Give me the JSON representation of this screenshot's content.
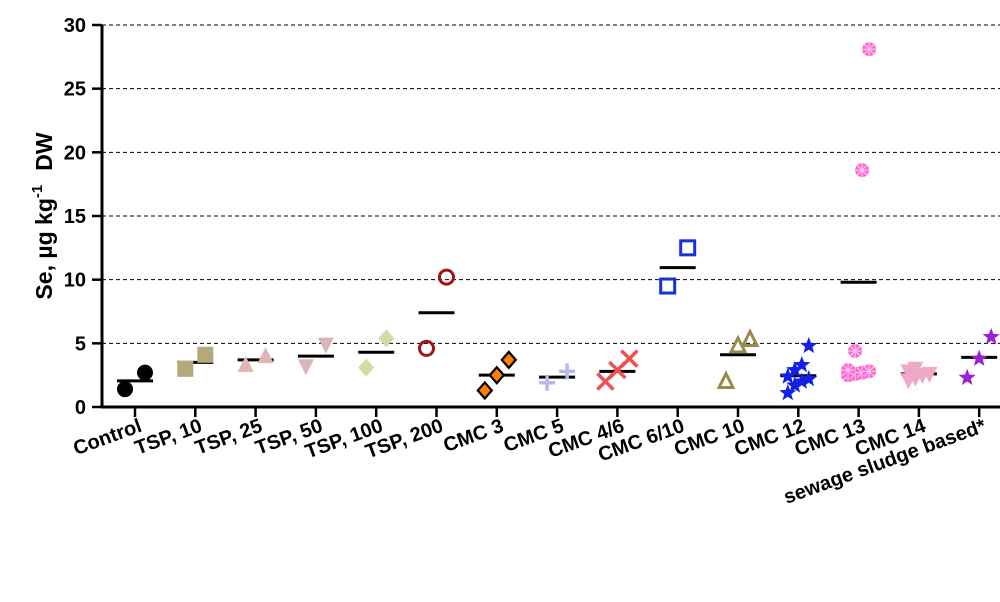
{
  "chart_data": {
    "type": "scatter",
    "title": "",
    "xlabel": "",
    "ylabel": {
      "prefix": "Se, µg kg",
      "superscript": "-1",
      "suffix": "DW"
    },
    "ylim": [
      0,
      30
    ],
    "yticks": [
      "0",
      "5",
      "10",
      "15",
      "20",
      "25",
      "30"
    ],
    "grid": "horizontal dashed lines at y = 5, 10, 15, 20, 25, 30",
    "categories": [
      "Control",
      "TSP, 10",
      "TSP, 25",
      "TSP, 50",
      "TSP, 100",
      "TSP, 200",
      "CMC 3",
      "CMC 5",
      "CMC 4/6",
      "CMC 6/10",
      "CMC 10",
      "CMC 12",
      "CMC 13",
      "CMC 14",
      "sewage sludge based*"
    ],
    "series": [
      {
        "category": "Control",
        "marker": "circle-filled",
        "color": "#000000",
        "points": [
          1.4,
          2.7
        ],
        "mean": 2.05
      },
      {
        "category": "TSP, 10",
        "marker": "square-filled",
        "color": "#b5a978",
        "points": [
          3.0,
          4.1
        ],
        "mean": 3.5
      },
      {
        "category": "TSP, 25",
        "marker": "triangle-up-filled",
        "color": "#e2b4b4",
        "points": [
          3.3,
          4.0
        ],
        "mean": 3.7
      },
      {
        "category": "TSP, 50",
        "marker": "triangle-down-filled",
        "color": "#d9b5b5",
        "points": [
          3.2,
          4.9
        ],
        "mean": 4.0
      },
      {
        "category": "TSP, 100",
        "marker": "diamond-filled",
        "color": "#d8d8a2",
        "points": [
          3.1,
          5.4
        ],
        "mean": 4.3
      },
      {
        "category": "TSP, 200",
        "marker": "circle-open",
        "color": "#a01414",
        "points": [
          4.6,
          10.2
        ],
        "mean": 7.4
      },
      {
        "category": "CMC 3",
        "marker": "diamond-orange-outlined",
        "color": "#ff8000",
        "points": [
          1.3,
          2.5,
          3.7
        ],
        "mean": 2.5
      },
      {
        "category": "CMC 5",
        "marker": "plus",
        "color": "#b8b8f0",
        "points": [
          1.9,
          2.8
        ],
        "mean": 2.35
      },
      {
        "category": "CMC 4/6",
        "marker": "cross",
        "color": "#f05050",
        "points": [
          2.0,
          2.9,
          3.8
        ],
        "mean": 2.8
      },
      {
        "category": "CMC 6/10",
        "marker": "square-open",
        "color": "#1530e0",
        "points": [
          9.5,
          12.5
        ],
        "mean": 10.95
      },
      {
        "category": "CMC 10",
        "marker": "triangle-up-open",
        "color": "#9a8a4c",
        "points": [
          2.0,
          4.8,
          5.3
        ],
        "mean": 4.1
      },
      {
        "category": "CMC 12",
        "marker": "star",
        "color": "#1020e8",
        "points": [
          1.1,
          1.7,
          2.0,
          2.2,
          2.4,
          2.9,
          3.3,
          4.8
        ],
        "mean": 2.45
      },
      {
        "category": "CMC 13",
        "marker": "asterisk-filled",
        "color": "#ff69d0",
        "points": [
          2.5,
          2.6,
          2.7,
          2.8,
          2.9,
          4.4,
          18.6,
          28.1
        ],
        "mean": 9.8
      },
      {
        "category": "CMC 14",
        "marker": "triangle-down-filled",
        "color": "#f0a8c8",
        "points": [
          2.1,
          2.3,
          2.5,
          2.6,
          2.8,
          3.0
        ],
        "mean": 2.6
      },
      {
        "category": "sewage sludge based*",
        "marker": "star",
        "color": "#9a20d8",
        "points": [
          2.3,
          3.8,
          5.5
        ],
        "mean": 3.9
      }
    ]
  }
}
